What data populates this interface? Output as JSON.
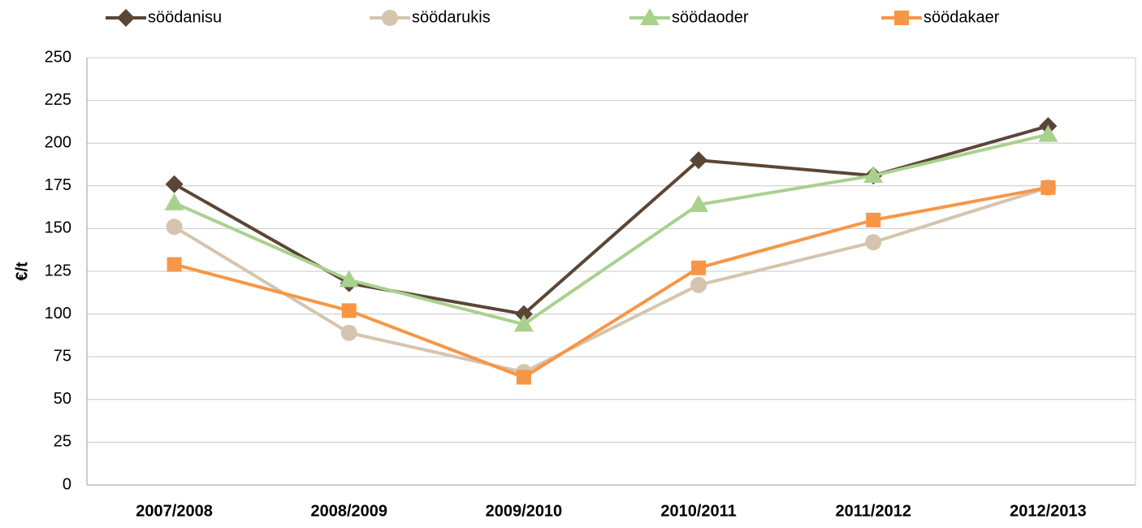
{
  "chart_data": {
    "type": "line",
    "y_label": "€/t",
    "categories": [
      "2007/2008",
      "2008/2009",
      "2009/2010",
      "2010/2011",
      "2011/2012",
      "2012/2013"
    ],
    "series": [
      {
        "name": "söödanisu",
        "color": "#5b4636",
        "marker": "diamond",
        "values": [
          176,
          118,
          100,
          190,
          181,
          210
        ]
      },
      {
        "name": "söödarukis",
        "color": "#d5c5ae",
        "marker": "circle",
        "values": [
          151,
          89,
          66,
          117,
          142,
          174
        ]
      },
      {
        "name": "söödaoder",
        "color": "#a9d18e",
        "marker": "triangle",
        "values": [
          165,
          120,
          94,
          164,
          181,
          205
        ]
      },
      {
        "name": "söödakaer",
        "color": "#f79646",
        "marker": "square",
        "values": [
          129,
          102,
          63,
          127,
          155,
          174
        ]
      }
    ],
    "ylim": [
      0,
      250
    ],
    "yticks": [
      0,
      25,
      50,
      75,
      100,
      125,
      150,
      175,
      200,
      225,
      250
    ],
    "grid": true
  }
}
